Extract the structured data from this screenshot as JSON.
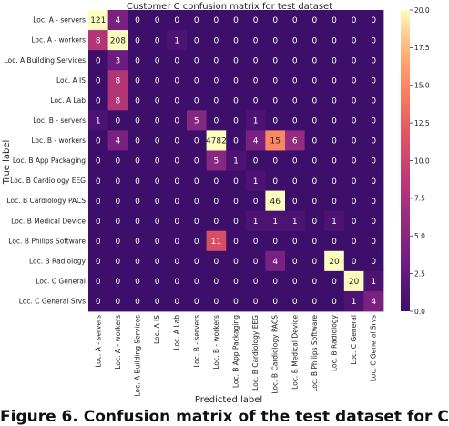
{
  "caption": "Figure 6. Confusion matrix of the test dataset for C",
  "chart_data": {
    "type": "heatmap",
    "title": "Customer C  confusion matrix for test dataset",
    "xlabel": "Predicted label",
    "ylabel": "True label",
    "labels": [
      "Loc. A - servers",
      "Loc. A - workers",
      "Loc. A Building Services",
      "Loc. A IS",
      "Loc. A Lab",
      "Loc. B - servers",
      "Loc. B - workers",
      "Loc. B App Packaging",
      "Loc. B Cardiology EEG",
      "Loc. B Cardiology PACS",
      "Loc. B Medical Device",
      "Loc. B Philips Software",
      "Loc. B Radiology",
      "Loc. C General",
      "Loc. C General Srvs"
    ],
    "matrix": [
      [
        121,
        4,
        0,
        0,
        0,
        0,
        0,
        0,
        0,
        0,
        0,
        0,
        0,
        0,
        0
      ],
      [
        8,
        208,
        0,
        0,
        1,
        0,
        0,
        0,
        0,
        0,
        0,
        0,
        0,
        0,
        0
      ],
      [
        0,
        3,
        0,
        0,
        0,
        0,
        0,
        0,
        0,
        0,
        0,
        0,
        0,
        0,
        0
      ],
      [
        0,
        8,
        0,
        0,
        0,
        0,
        0,
        0,
        0,
        0,
        0,
        0,
        0,
        0,
        0
      ],
      [
        0,
        8,
        0,
        0,
        0,
        0,
        0,
        0,
        0,
        0,
        0,
        0,
        0,
        0,
        0
      ],
      [
        1,
        0,
        0,
        0,
        0,
        5,
        0,
        0,
        1,
        0,
        0,
        0,
        0,
        0,
        0
      ],
      [
        0,
        4,
        0,
        0,
        0,
        0,
        4782,
        0,
        4,
        15,
        6,
        0,
        0,
        0,
        0
      ],
      [
        0,
        0,
        0,
        0,
        0,
        0,
        5,
        1,
        0,
        0,
        0,
        0,
        0,
        0,
        0
      ],
      [
        0,
        0,
        0,
        0,
        0,
        0,
        0,
        0,
        1,
        0,
        0,
        0,
        0,
        0,
        0
      ],
      [
        0,
        0,
        0,
        0,
        0,
        0,
        0,
        0,
        0,
        46,
        0,
        0,
        0,
        0,
        0
      ],
      [
        0,
        0,
        0,
        0,
        0,
        0,
        0,
        0,
        1,
        1,
        1,
        0,
        1,
        0,
        0
      ],
      [
        0,
        0,
        0,
        0,
        0,
        0,
        11,
        0,
        0,
        0,
        0,
        0,
        0,
        0,
        0
      ],
      [
        0,
        0,
        0,
        0,
        0,
        0,
        0,
        0,
        0,
        4,
        0,
        0,
        20,
        0,
        0
      ],
      [
        0,
        0,
        0,
        0,
        0,
        0,
        0,
        0,
        0,
        0,
        0,
        0,
        0,
        20,
        1
      ],
      [
        0,
        0,
        0,
        0,
        0,
        0,
        0,
        0,
        0,
        0,
        0,
        0,
        0,
        1,
        4
      ]
    ],
    "color_range": [
      0,
      20
    ],
    "colorbar_ticks": [
      "0.0",
      "2.5",
      "5.0",
      "7.5",
      "10.0",
      "12.5",
      "15.0",
      "17.5",
      "20.0"
    ],
    "colormap": "magma",
    "annotated": true,
    "grid": false
  }
}
